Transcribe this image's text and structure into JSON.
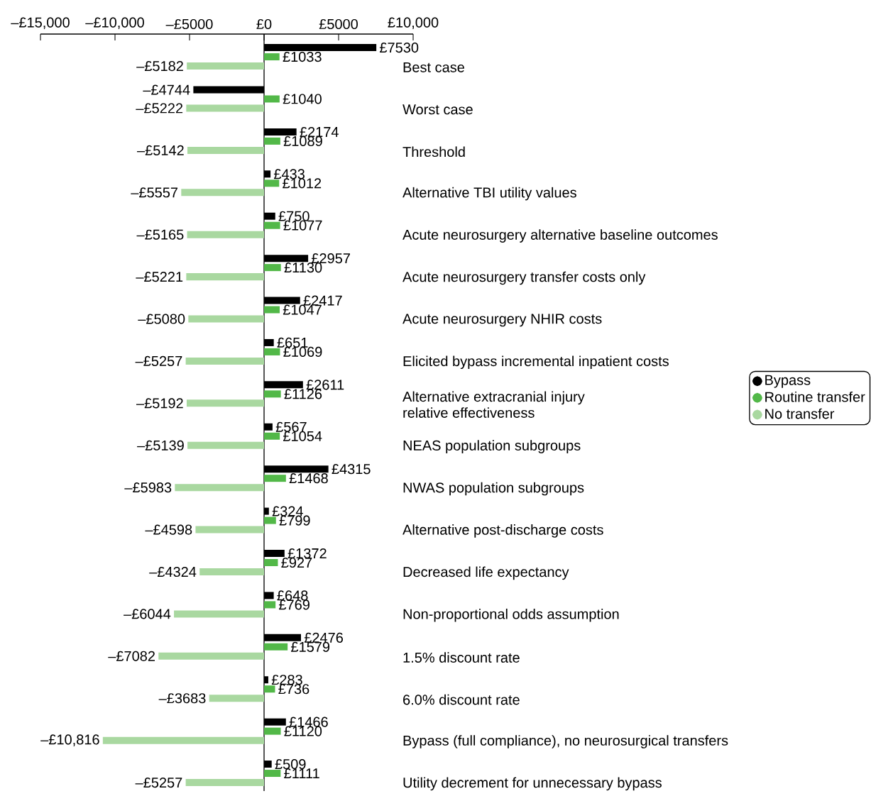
{
  "chart_data": {
    "type": "bar",
    "orientation": "horizontal",
    "categories": [
      "Best case",
      "Worst case",
      "Threshold",
      "Alternative TBI utility values",
      "Acute neurosurgery alternative baseline outcomes",
      "Acute neurosurgery transfer costs only",
      "Acute neurosurgery NHIR costs",
      "Elicited bypass incremental inpatient costs",
      "Alternative extracranial injury\nrelative effectiveness",
      "NEAS population subgroups",
      "NWAS population subgroups",
      "Alternative post-discharge costs",
      "Decreased life expectancy",
      "Non-proportional odds assumption",
      "1.5% discount rate",
      "6.0% discount rate",
      "Bypass (full compliance), no neurosurgical transfers",
      "Utility decrement for unnecessary bypass"
    ],
    "series": [
      {
        "name": "Bypass",
        "color": "#000000",
        "values": [
          7530,
          -4744,
          2174,
          433,
          750,
          2957,
          2417,
          651,
          2611,
          567,
          4315,
          324,
          1372,
          648,
          2476,
          283,
          1466,
          509
        ],
        "value_labels": [
          "£7530",
          "–£4744",
          "£2174",
          "£433",
          "£750",
          "£2957",
          "£2417",
          "£651",
          "£2611",
          "£567",
          "£4315",
          "£324",
          "£1372",
          "£648",
          "£2476",
          "£283",
          "£1466",
          "£509"
        ]
      },
      {
        "name": "Routine transfer",
        "color": "#52b848",
        "values": [
          1033,
          1040,
          1089,
          1012,
          1077,
          1130,
          1047,
          1069,
          1126,
          1054,
          1468,
          799,
          927,
          769,
          1579,
          736,
          1120,
          1111
        ],
        "value_labels": [
          "£1033",
          "£1040",
          "£1089",
          "£1012",
          "£1077",
          "£1130",
          "£1047",
          "£1069",
          "£1126",
          "£1054",
          "£1468",
          "£799",
          "£927",
          "£769",
          "£1579",
          "£736",
          "£1120",
          "£1111"
        ]
      },
      {
        "name": "No transfer",
        "color": "#a9d8a0",
        "values": [
          -5182,
          -5222,
          -5142,
          -5557,
          -5165,
          -5221,
          -5080,
          -5257,
          -5192,
          -5139,
          -5983,
          -4598,
          -4324,
          -6044,
          -7082,
          -3683,
          -10816,
          -5257
        ],
        "value_labels": [
          "–£5182",
          "–£5222",
          "–£5142",
          "–£5557",
          "–£5165",
          "–£5221",
          "–£5080",
          "–£5257",
          "–£5192",
          "–£5139",
          "–£5983",
          "–£4598",
          "–£4324",
          "–£6044",
          "–£7082",
          "–£3683",
          "–£10,816",
          "–£5257"
        ]
      }
    ],
    "xlim": [
      -15000,
      10000
    ],
    "xticks": [
      {
        "value": -15000,
        "label": "–£15,000"
      },
      {
        "value": -10000,
        "label": "–£10,000"
      },
      {
        "value": -5000,
        "label": "–£5000"
      },
      {
        "value": 0,
        "label": "£0"
      },
      {
        "value": 5000,
        "label": "£5000"
      },
      {
        "value": 10000,
        "label": "£10,000"
      }
    ],
    "legend": "right"
  }
}
